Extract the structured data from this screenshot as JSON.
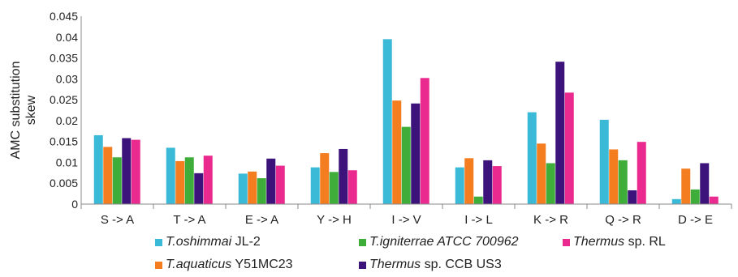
{
  "chart_data": {
    "type": "bar",
    "ylabel": "AMC substitution skew",
    "ylabel_lines": [
      "AMC substitution",
      "skew"
    ],
    "ylim": [
      0,
      0.045
    ],
    "yticks": [
      "0",
      "0.005",
      "0.01",
      "0.015",
      "0.02",
      "0.025",
      "0.03",
      "0.035",
      "0.04",
      "0.045"
    ],
    "categories": [
      "S -> A",
      "T -> A",
      "E -> A",
      "Y -> H",
      "I -> V",
      "I -> L",
      "K -> R",
      "Q -> R",
      "D -> E"
    ],
    "grid": false,
    "legend_position": "bottom",
    "series": [
      {
        "name": "T.oshimmai JL-2",
        "italic_part": "T.oshimmai",
        "plain_part": " JL-2",
        "color": "#3bbad7",
        "values": [
          0.0165,
          0.0135,
          0.0073,
          0.0088,
          0.0395,
          0.0088,
          0.022,
          0.0202,
          0.0012
        ]
      },
      {
        "name": "T.aquaticus Y51MC23",
        "italic_part": "T.aquaticus",
        "plain_part": " Y51MC23",
        "color": "#f47d20",
        "values": [
          0.0137,
          0.0103,
          0.0078,
          0.0122,
          0.0248,
          0.011,
          0.0145,
          0.0131,
          0.0085
        ]
      },
      {
        "name": "T.igniterrae ATCC 700962",
        "italic_part": "T.igniterrae ATCC 700962",
        "plain_part": "",
        "color": "#3fad3a",
        "values": [
          0.0112,
          0.0112,
          0.0062,
          0.0077,
          0.0185,
          0.0018,
          0.0098,
          0.0105,
          0.0035
        ]
      },
      {
        "name": "Thermus sp. CCB US3",
        "italic_part": "Thermus",
        "plain_part": " sp. CCB US3",
        "color": "#3b137a",
        "values": [
          0.0158,
          0.0074,
          0.0109,
          0.0132,
          0.0241,
          0.0105,
          0.0341,
          0.0033,
          0.0098
        ]
      },
      {
        "name": "Thermus sp. RL",
        "italic_part": "Thermus",
        "plain_part": " sp. RL",
        "color": "#ea2a8f",
        "values": [
          0.0154,
          0.0116,
          0.0092,
          0.0081,
          0.0302,
          0.0091,
          0.0267,
          0.0149,
          0.0018
        ]
      }
    ]
  }
}
